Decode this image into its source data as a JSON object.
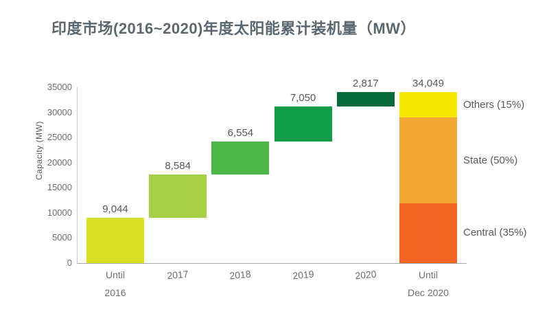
{
  "header": {
    "title": "印度市场(2016~2020)年度太阳能累计装机量（MW）",
    "title_color": "#5b6770"
  },
  "chart_data": {
    "type": "bar",
    "subtype": "waterfall-with-stacked-total",
    "title": "印度市场(2016~2020)年度太阳能累计装机量（MW）",
    "xlabel": "",
    "ylabel": "Capacity (MW)",
    "ylim": [
      0,
      35000
    ],
    "yticks": [
      0,
      5000,
      10000,
      15000,
      20000,
      25000,
      30000,
      35000
    ],
    "grid": "off",
    "legend_position": "right-of-final-bar",
    "categories": [
      "Until 2016",
      "2017",
      "2018",
      "2019",
      "2020",
      "Until Dec 2020"
    ],
    "bars": [
      {
        "category": "Until 2016",
        "label_lines": [
          "Until",
          "2016"
        ],
        "kind": "increment",
        "value": 9044,
        "value_label": "9,044",
        "color": "#d6df23"
      },
      {
        "category": "2017",
        "label_lines": [
          "2017"
        ],
        "kind": "increment",
        "value": 8584,
        "value_label": "8,584",
        "color": "#a5d045"
      },
      {
        "category": "2018",
        "label_lines": [
          "2018"
        ],
        "kind": "increment",
        "value": 6554,
        "value_label": "6,554",
        "color": "#4cb749"
      },
      {
        "category": "2019",
        "label_lines": [
          "2019"
        ],
        "kind": "increment",
        "value": 7050,
        "value_label": "7,050",
        "color": "#109c49"
      },
      {
        "category": "2020",
        "label_lines": [
          "2020"
        ],
        "kind": "increment",
        "value": 2817,
        "value_label": "2,817",
        "color": "#04693a"
      },
      {
        "category": "Until Dec 2020",
        "label_lines": [
          "Until",
          "Dec 2020"
        ],
        "kind": "total",
        "value": 34049,
        "value_label": "34,049",
        "segments": [
          {
            "name": "Central",
            "label": "Central (35%)",
            "percent": 35,
            "color": "#f2651f"
          },
          {
            "name": "State",
            "label": "State (50%)",
            "percent": 50,
            "color": "#f2a733"
          },
          {
            "name": "Others",
            "label": "Others (15%)",
            "percent": 15,
            "color": "#f7e600"
          }
        ]
      }
    ],
    "colors": {
      "axis_line": "#c9cbcd",
      "baseline": "#a5a7aa",
      "tick_text": "#6d6e71",
      "value_text": "#55575c",
      "segment_text": "#58595b"
    }
  }
}
